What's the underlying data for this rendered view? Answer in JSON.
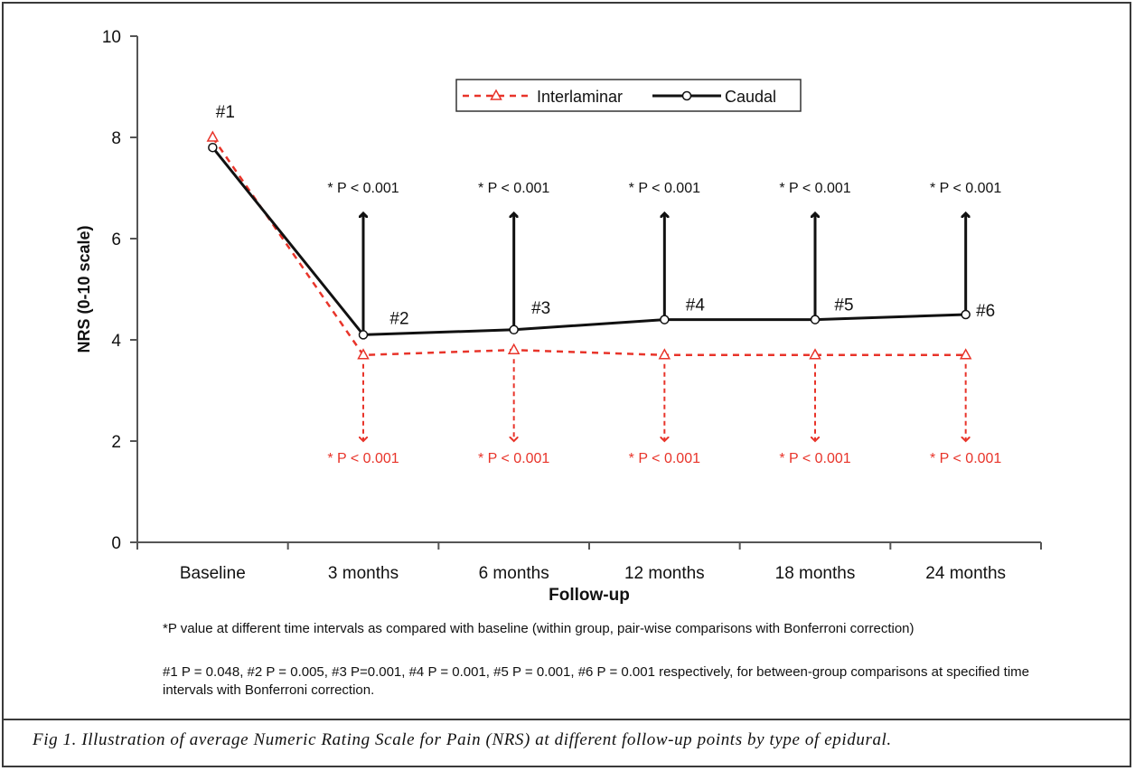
{
  "chart_data": {
    "type": "line",
    "categories": [
      "Baseline",
      "3 months",
      "6 months",
      "12 months",
      "18 months",
      "24 months"
    ],
    "series": [
      {
        "name": "Interlaminar",
        "values": [
          8.0,
          3.7,
          3.8,
          3.7,
          3.7,
          3.7
        ],
        "color": "#e8342a",
        "style": "dashed",
        "marker": "triangle-open"
      },
      {
        "name": "Caudal",
        "values": [
          7.8,
          4.1,
          4.2,
          4.4,
          4.4,
          4.5
        ],
        "color": "#111111",
        "style": "solid",
        "marker": "circle-open"
      }
    ],
    "xlabel": "Follow-up",
    "ylabel": "NRS (0-10 scale)",
    "ylim": [
      0,
      10
    ],
    "yticks": [
      "0",
      "2",
      "4",
      "6",
      "8",
      "10"
    ],
    "legend_position": "top-center",
    "grid": false,
    "point_labels": [
      "#1",
      "#2",
      "#3",
      "#4",
      "#5",
      "#6"
    ],
    "caudal_pvalues": [
      "* P < 0.001",
      "* P < 0.001",
      "* P < 0.001",
      "* P < 0.001",
      "* P < 0.001"
    ],
    "interlaminar_pvalues": [
      "* P < 0.001",
      "* P < 0.001",
      "* P < 0.001",
      "* P < 0.001",
      "* P < 0.001"
    ]
  },
  "footnotes": {
    "line1": "*P value at different time intervals as compared with baseline (within group, pair-wise comparisons with Bonferroni correction)",
    "line2": "#1 P = 0.048, #2 P = 0.005, #3 P=0.001, #4 P = 0.001, #5 P = 0.001, #6 P = 0.001 respectively, for between-group comparisons at specified time intervals with Bonferroni correction."
  },
  "caption": "Fig 1. Illustration of average Numeric Rating Scale for Pain (NRS) at different follow-up points by type of epidural."
}
